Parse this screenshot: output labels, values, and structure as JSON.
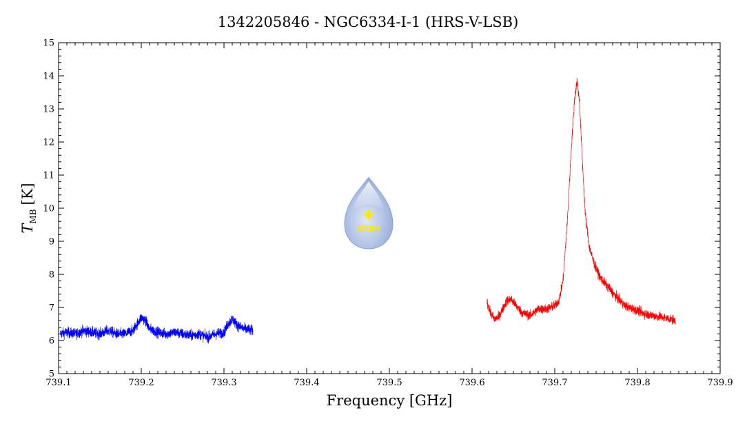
{
  "chart_data": {
    "type": "line",
    "title": "1342205846 - NGC6334-I-1 (HRS-V-LSB)",
    "xlabel": "Frequency [GHz]",
    "ylabel_main": "T",
    "ylabel_sub": "MB",
    "ylabel_unit": "[K]",
    "xlim": [
      739.1,
      739.9
    ],
    "ylim": [
      5,
      15
    ],
    "x_ticks": [
      "739.1",
      "739.2",
      "739.3",
      "739.4",
      "739.5",
      "739.6",
      "739.7",
      "739.8",
      "739.9"
    ],
    "y_ticks": [
      "5",
      "6",
      "7",
      "8",
      "9",
      "10",
      "11",
      "12",
      "13",
      "14",
      "15"
    ],
    "grid": false,
    "series": [
      {
        "color": "#0000ff",
        "x": [
          739.102,
          739.11,
          739.12,
          739.13,
          739.14,
          739.15,
          739.16,
          739.17,
          739.18,
          739.19,
          739.195,
          739.2,
          739.205,
          739.21,
          739.22,
          739.23,
          739.24,
          739.25,
          739.26,
          739.27,
          739.28,
          739.29,
          739.3,
          739.305,
          739.31,
          739.315,
          739.32,
          739.325,
          739.335
        ],
        "y": [
          6.2,
          6.25,
          6.2,
          6.3,
          6.25,
          6.2,
          6.3,
          6.2,
          6.2,
          6.3,
          6.5,
          6.7,
          6.6,
          6.35,
          6.25,
          6.2,
          6.25,
          6.2,
          6.15,
          6.2,
          6.1,
          6.2,
          6.25,
          6.5,
          6.65,
          6.5,
          6.4,
          6.35,
          6.3
        ],
        "noise": 0.16
      },
      {
        "color": "#ff0000",
        "x": [
          739.618,
          739.622,
          739.627,
          739.632,
          739.637,
          739.642,
          739.647,
          739.652,
          739.66,
          739.67,
          739.68,
          739.69,
          739.7,
          739.705,
          739.71,
          739.715,
          739.72,
          739.724,
          739.727,
          739.73,
          739.733,
          739.737,
          739.742,
          739.748,
          739.755,
          739.765,
          739.775,
          739.785,
          739.8,
          739.81,
          739.82,
          739.83,
          739.84,
          739.846
        ],
        "y": [
          7.2,
          6.85,
          6.65,
          6.7,
          6.95,
          7.2,
          7.25,
          7.1,
          6.85,
          6.75,
          6.95,
          6.95,
          7.05,
          7.2,
          7.8,
          9.5,
          11.8,
          13.3,
          13.85,
          13.2,
          11.6,
          9.8,
          8.8,
          8.3,
          7.9,
          7.6,
          7.3,
          7.05,
          6.9,
          6.8,
          6.75,
          6.7,
          6.65,
          6.6
        ],
        "noise": 0.14
      }
    ]
  },
  "watermark": {
    "text": "WISH",
    "star_color": "#ffe600",
    "drop_color": "#a9bcdf"
  }
}
